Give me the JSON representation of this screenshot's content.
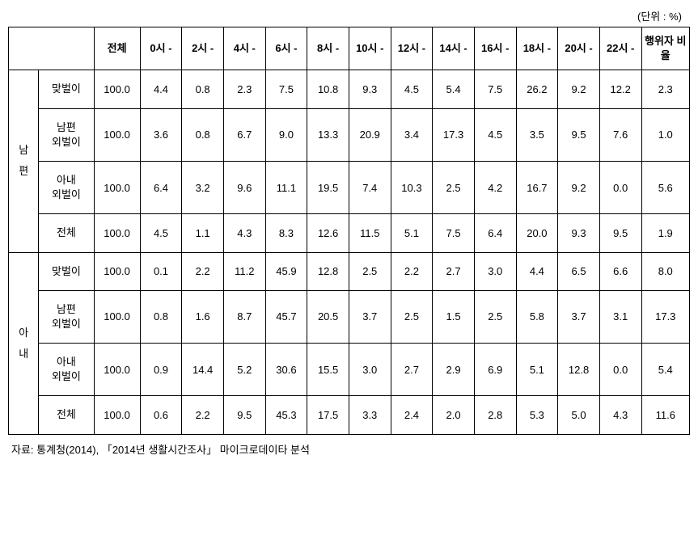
{
  "unit_label": "(단위 : %)",
  "headers": {
    "total": "전체",
    "times": [
      "0시\n-",
      "2시\n-",
      "4시\n-",
      "6시\n-",
      "8시\n-",
      "10시\n-",
      "12시\n-",
      "14시\n-",
      "16시\n-",
      "18시\n-",
      "20시\n-",
      "22시\n-"
    ],
    "ratio": "행위자\n비율"
  },
  "categories": [
    {
      "label": "남\n편",
      "rows": [
        {
          "label": "맞벌이",
          "values": [
            "100.0",
            "4.4",
            "0.8",
            "2.3",
            "7.5",
            "10.8",
            "9.3",
            "4.5",
            "5.4",
            "7.5",
            "26.2",
            "9.2",
            "12.2",
            "2.3"
          ]
        },
        {
          "label": "남편\n외벌이",
          "values": [
            "100.0",
            "3.6",
            "0.8",
            "6.7",
            "9.0",
            "13.3",
            "20.9",
            "3.4",
            "17.3",
            "4.5",
            "3.5",
            "9.5",
            "7.6",
            "1.0"
          ]
        },
        {
          "label": "아내\n외벌이",
          "values": [
            "100.0",
            "6.4",
            "3.2",
            "9.6",
            "11.1",
            "19.5",
            "7.4",
            "10.3",
            "2.5",
            "4.2",
            "16.7",
            "9.2",
            "0.0",
            "5.6"
          ]
        },
        {
          "label": "전체",
          "values": [
            "100.0",
            "4.5",
            "1.1",
            "4.3",
            "8.3",
            "12.6",
            "11.5",
            "5.1",
            "7.5",
            "6.4",
            "20.0",
            "9.3",
            "9.5",
            "1.9"
          ]
        }
      ]
    },
    {
      "label": "아\n내",
      "rows": [
        {
          "label": "맞벌이",
          "values": [
            "100.0",
            "0.1",
            "2.2",
            "11.2",
            "45.9",
            "12.8",
            "2.5",
            "2.2",
            "2.7",
            "3.0",
            "4.4",
            "6.5",
            "6.6",
            "8.0"
          ]
        },
        {
          "label": "남편\n외벌이",
          "values": [
            "100.0",
            "0.8",
            "1.6",
            "8.7",
            "45.7",
            "20.5",
            "3.7",
            "2.5",
            "1.5",
            "2.5",
            "5.8",
            "3.7",
            "3.1",
            "17.3"
          ]
        },
        {
          "label": "아내\n외벌이",
          "values": [
            "100.0",
            "0.9",
            "14.4",
            "5.2",
            "30.6",
            "15.5",
            "3.0",
            "2.7",
            "2.9",
            "6.9",
            "5.1",
            "12.8",
            "0.0",
            "5.4"
          ]
        },
        {
          "label": "전체",
          "values": [
            "100.0",
            "0.6",
            "2.2",
            "9.5",
            "45.3",
            "17.5",
            "3.3",
            "2.4",
            "2.0",
            "2.8",
            "5.3",
            "5.0",
            "4.3",
            "11.6"
          ]
        }
      ]
    }
  ],
  "source": "자료: 통계청(2014), 「2014년 생활시간조사」 마이크로데이타 분석"
}
